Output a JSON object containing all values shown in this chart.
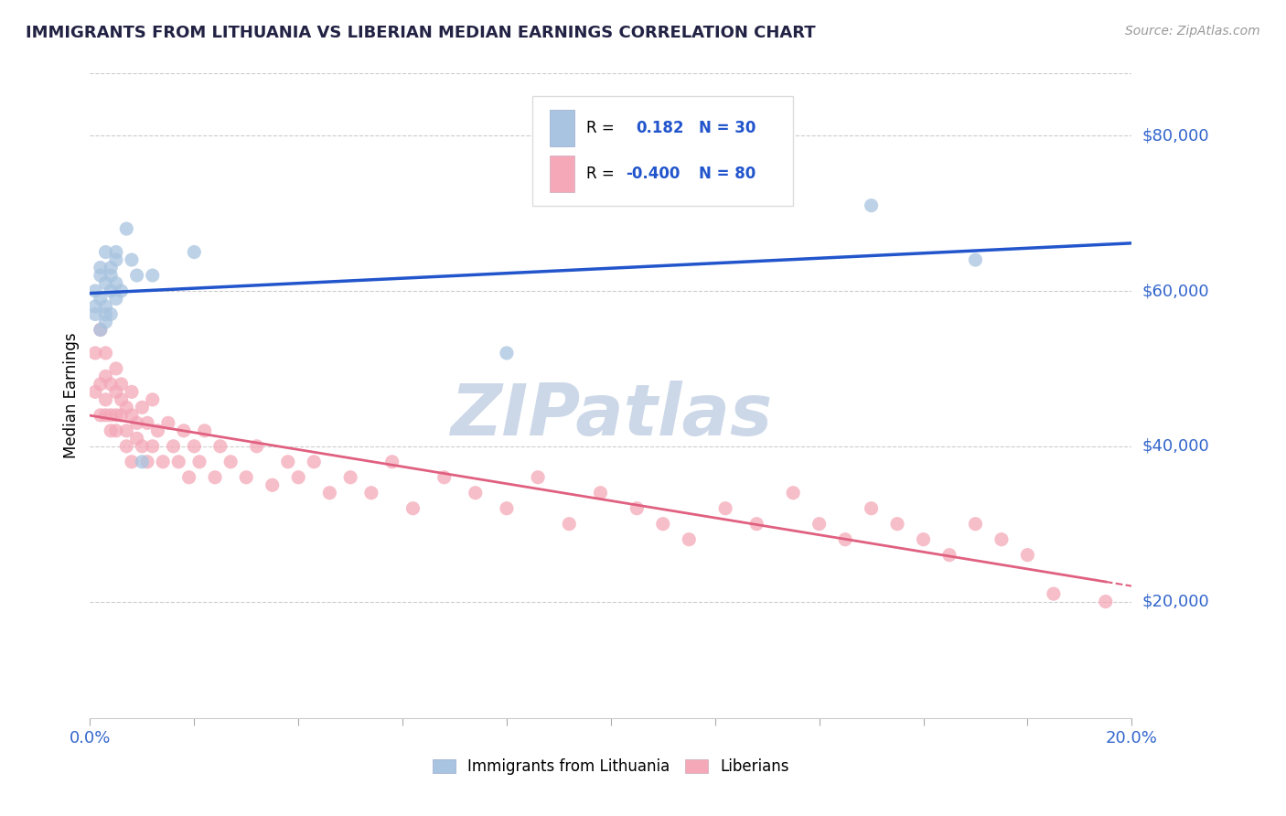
{
  "title": "IMMIGRANTS FROM LITHUANIA VS LIBERIAN MEDIAN EARNINGS CORRELATION CHART",
  "source": "Source: ZipAtlas.com",
  "ylabel": "Median Earnings",
  "y_tick_labels": [
    "$20,000",
    "$40,000",
    "$60,000",
    "$80,000"
  ],
  "y_tick_values": [
    20000,
    40000,
    60000,
    80000
  ],
  "ylim": [
    5000,
    88000
  ],
  "xlim": [
    0.0,
    0.2
  ],
  "x_ticks": [
    0.0,
    0.02,
    0.04,
    0.06,
    0.08,
    0.1,
    0.12,
    0.14,
    0.16,
    0.18,
    0.2
  ],
  "x_tick_labels_show": [
    "0.0%",
    "",
    "",
    "",
    "",
    "",
    "",
    "",
    "",
    "",
    "20.0%"
  ],
  "legend_r1_val": "0.182",
  "legend_n1": "N = 30",
  "legend_r2_val": "-0.400",
  "legend_n2": "N = 80",
  "label1": "Immigrants from Lithuania",
  "label2": "Liberians",
  "color1": "#a8c4e0",
  "color2": "#f4a8b8",
  "line_color1": "#2255cc",
  "line_color2": "#e06080",
  "watermark": "ZIPatlas",
  "watermark_color": "#ccd8e8",
  "background_color": "#ffffff",
  "axis_label_color": "#3366cc",
  "grid_color": "#cccccc",
  "legend_text_color": "#2255cc",
  "lithuania_x": [
    0.001,
    0.001,
    0.001,
    0.002,
    0.002,
    0.002,
    0.002,
    0.003,
    0.003,
    0.003,
    0.003,
    0.003,
    0.004,
    0.004,
    0.004,
    0.004,
    0.005,
    0.005,
    0.005,
    0.005,
    0.006,
    0.007,
    0.008,
    0.009,
    0.01,
    0.012,
    0.02,
    0.08,
    0.15,
    0.17
  ],
  "lithuania_y": [
    58000,
    57000,
    60000,
    62000,
    55000,
    63000,
    59000,
    61000,
    57000,
    65000,
    58000,
    56000,
    60000,
    63000,
    57000,
    62000,
    65000,
    59000,
    61000,
    64000,
    60000,
    68000,
    64000,
    62000,
    38000,
    62000,
    65000,
    52000,
    71000,
    64000
  ],
  "liberian_x": [
    0.001,
    0.001,
    0.002,
    0.002,
    0.002,
    0.003,
    0.003,
    0.003,
    0.003,
    0.004,
    0.004,
    0.004,
    0.005,
    0.005,
    0.005,
    0.005,
    0.006,
    0.006,
    0.006,
    0.007,
    0.007,
    0.007,
    0.008,
    0.008,
    0.008,
    0.009,
    0.009,
    0.01,
    0.01,
    0.011,
    0.011,
    0.012,
    0.012,
    0.013,
    0.014,
    0.015,
    0.016,
    0.017,
    0.018,
    0.019,
    0.02,
    0.021,
    0.022,
    0.024,
    0.025,
    0.027,
    0.03,
    0.032,
    0.035,
    0.038,
    0.04,
    0.043,
    0.046,
    0.05,
    0.054,
    0.058,
    0.062,
    0.068,
    0.074,
    0.08,
    0.086,
    0.092,
    0.098,
    0.105,
    0.11,
    0.115,
    0.122,
    0.128,
    0.135,
    0.14,
    0.145,
    0.15,
    0.155,
    0.16,
    0.165,
    0.17,
    0.175,
    0.18,
    0.185,
    0.195
  ],
  "liberian_y": [
    52000,
    47000,
    55000,
    48000,
    44000,
    52000,
    46000,
    44000,
    49000,
    48000,
    44000,
    42000,
    50000,
    47000,
    44000,
    42000,
    46000,
    44000,
    48000,
    45000,
    42000,
    40000,
    47000,
    44000,
    38000,
    43000,
    41000,
    45000,
    40000,
    43000,
    38000,
    46000,
    40000,
    42000,
    38000,
    43000,
    40000,
    38000,
    42000,
    36000,
    40000,
    38000,
    42000,
    36000,
    40000,
    38000,
    36000,
    40000,
    35000,
    38000,
    36000,
    38000,
    34000,
    36000,
    34000,
    38000,
    32000,
    36000,
    34000,
    32000,
    36000,
    30000,
    34000,
    32000,
    30000,
    28000,
    32000,
    30000,
    34000,
    30000,
    28000,
    32000,
    30000,
    28000,
    26000,
    30000,
    28000,
    26000,
    21000,
    20000
  ]
}
